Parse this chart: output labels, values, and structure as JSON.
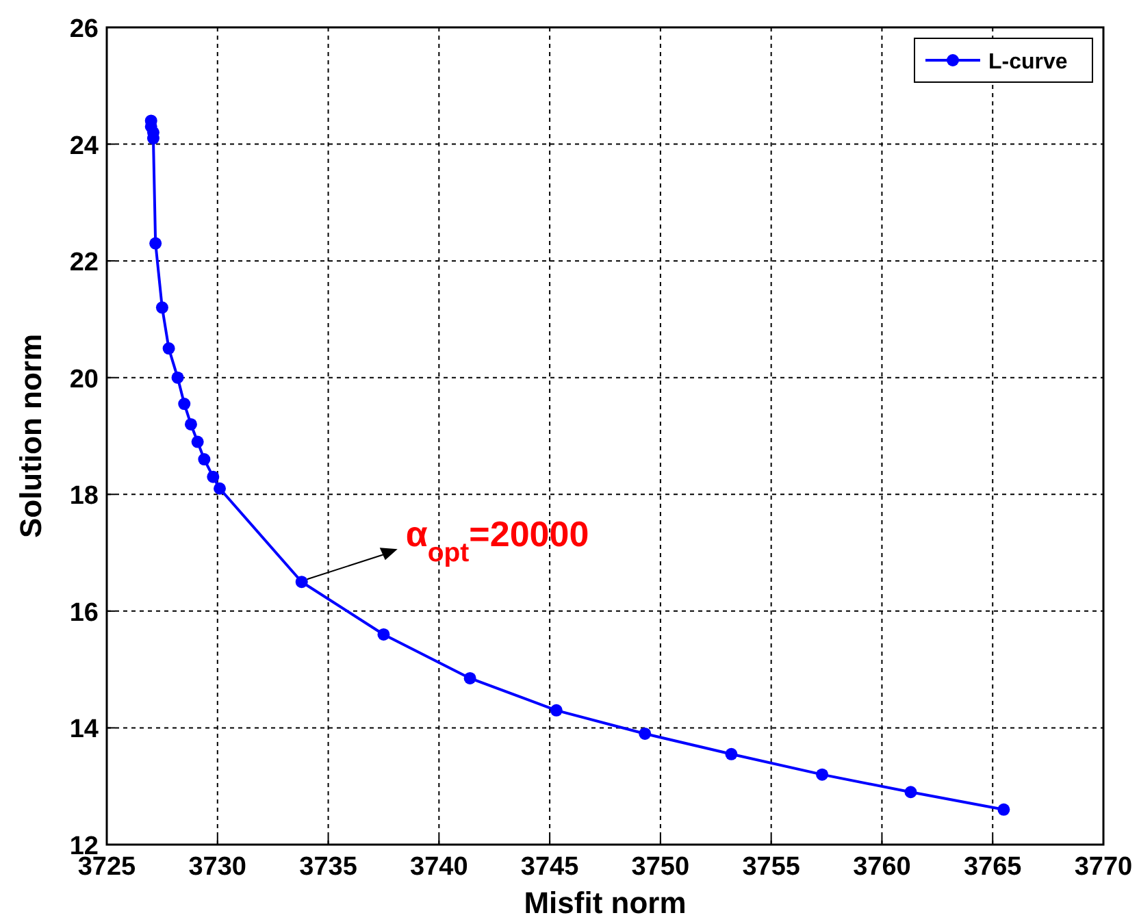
{
  "chart_data": {
    "type": "line",
    "xlabel": "Misfit norm",
    "ylabel": "Solution norm",
    "x": [
      3727.0,
      3727.0,
      3727.1,
      3727.1,
      3727.2,
      3727.5,
      3727.8,
      3728.2,
      3728.5,
      3728.8,
      3729.1,
      3729.4,
      3729.8,
      3730.1,
      3733.8,
      3737.5,
      3741.4,
      3745.3,
      3749.3,
      3753.2,
      3757.3,
      3761.3,
      3765.5
    ],
    "series": [
      {
        "name": "L-curve",
        "color": "#0000ff",
        "values": [
          24.4,
          24.3,
          24.2,
          24.1,
          22.3,
          21.2,
          20.5,
          20.0,
          19.55,
          19.2,
          18.9,
          18.6,
          18.3,
          18.1,
          16.5,
          15.6,
          14.85,
          14.3,
          13.9,
          13.55,
          13.2,
          12.9,
          12.6
        ]
      }
    ],
    "xlim": [
      3725,
      3770
    ],
    "xticks": [
      3725,
      3730,
      3735,
      3740,
      3745,
      3750,
      3755,
      3760,
      3765,
      3770
    ],
    "ylim": [
      12,
      26
    ],
    "yticks": [
      12,
      14,
      16,
      18,
      20,
      22,
      24,
      26
    ],
    "grid": true,
    "legend": "top right",
    "marker": "circle",
    "line_style": "solid",
    "annotations": [
      {
        "text": "α$_{opt}$=20000",
        "x": 3733.8,
        "y": 16.5
      }
    ]
  }
}
